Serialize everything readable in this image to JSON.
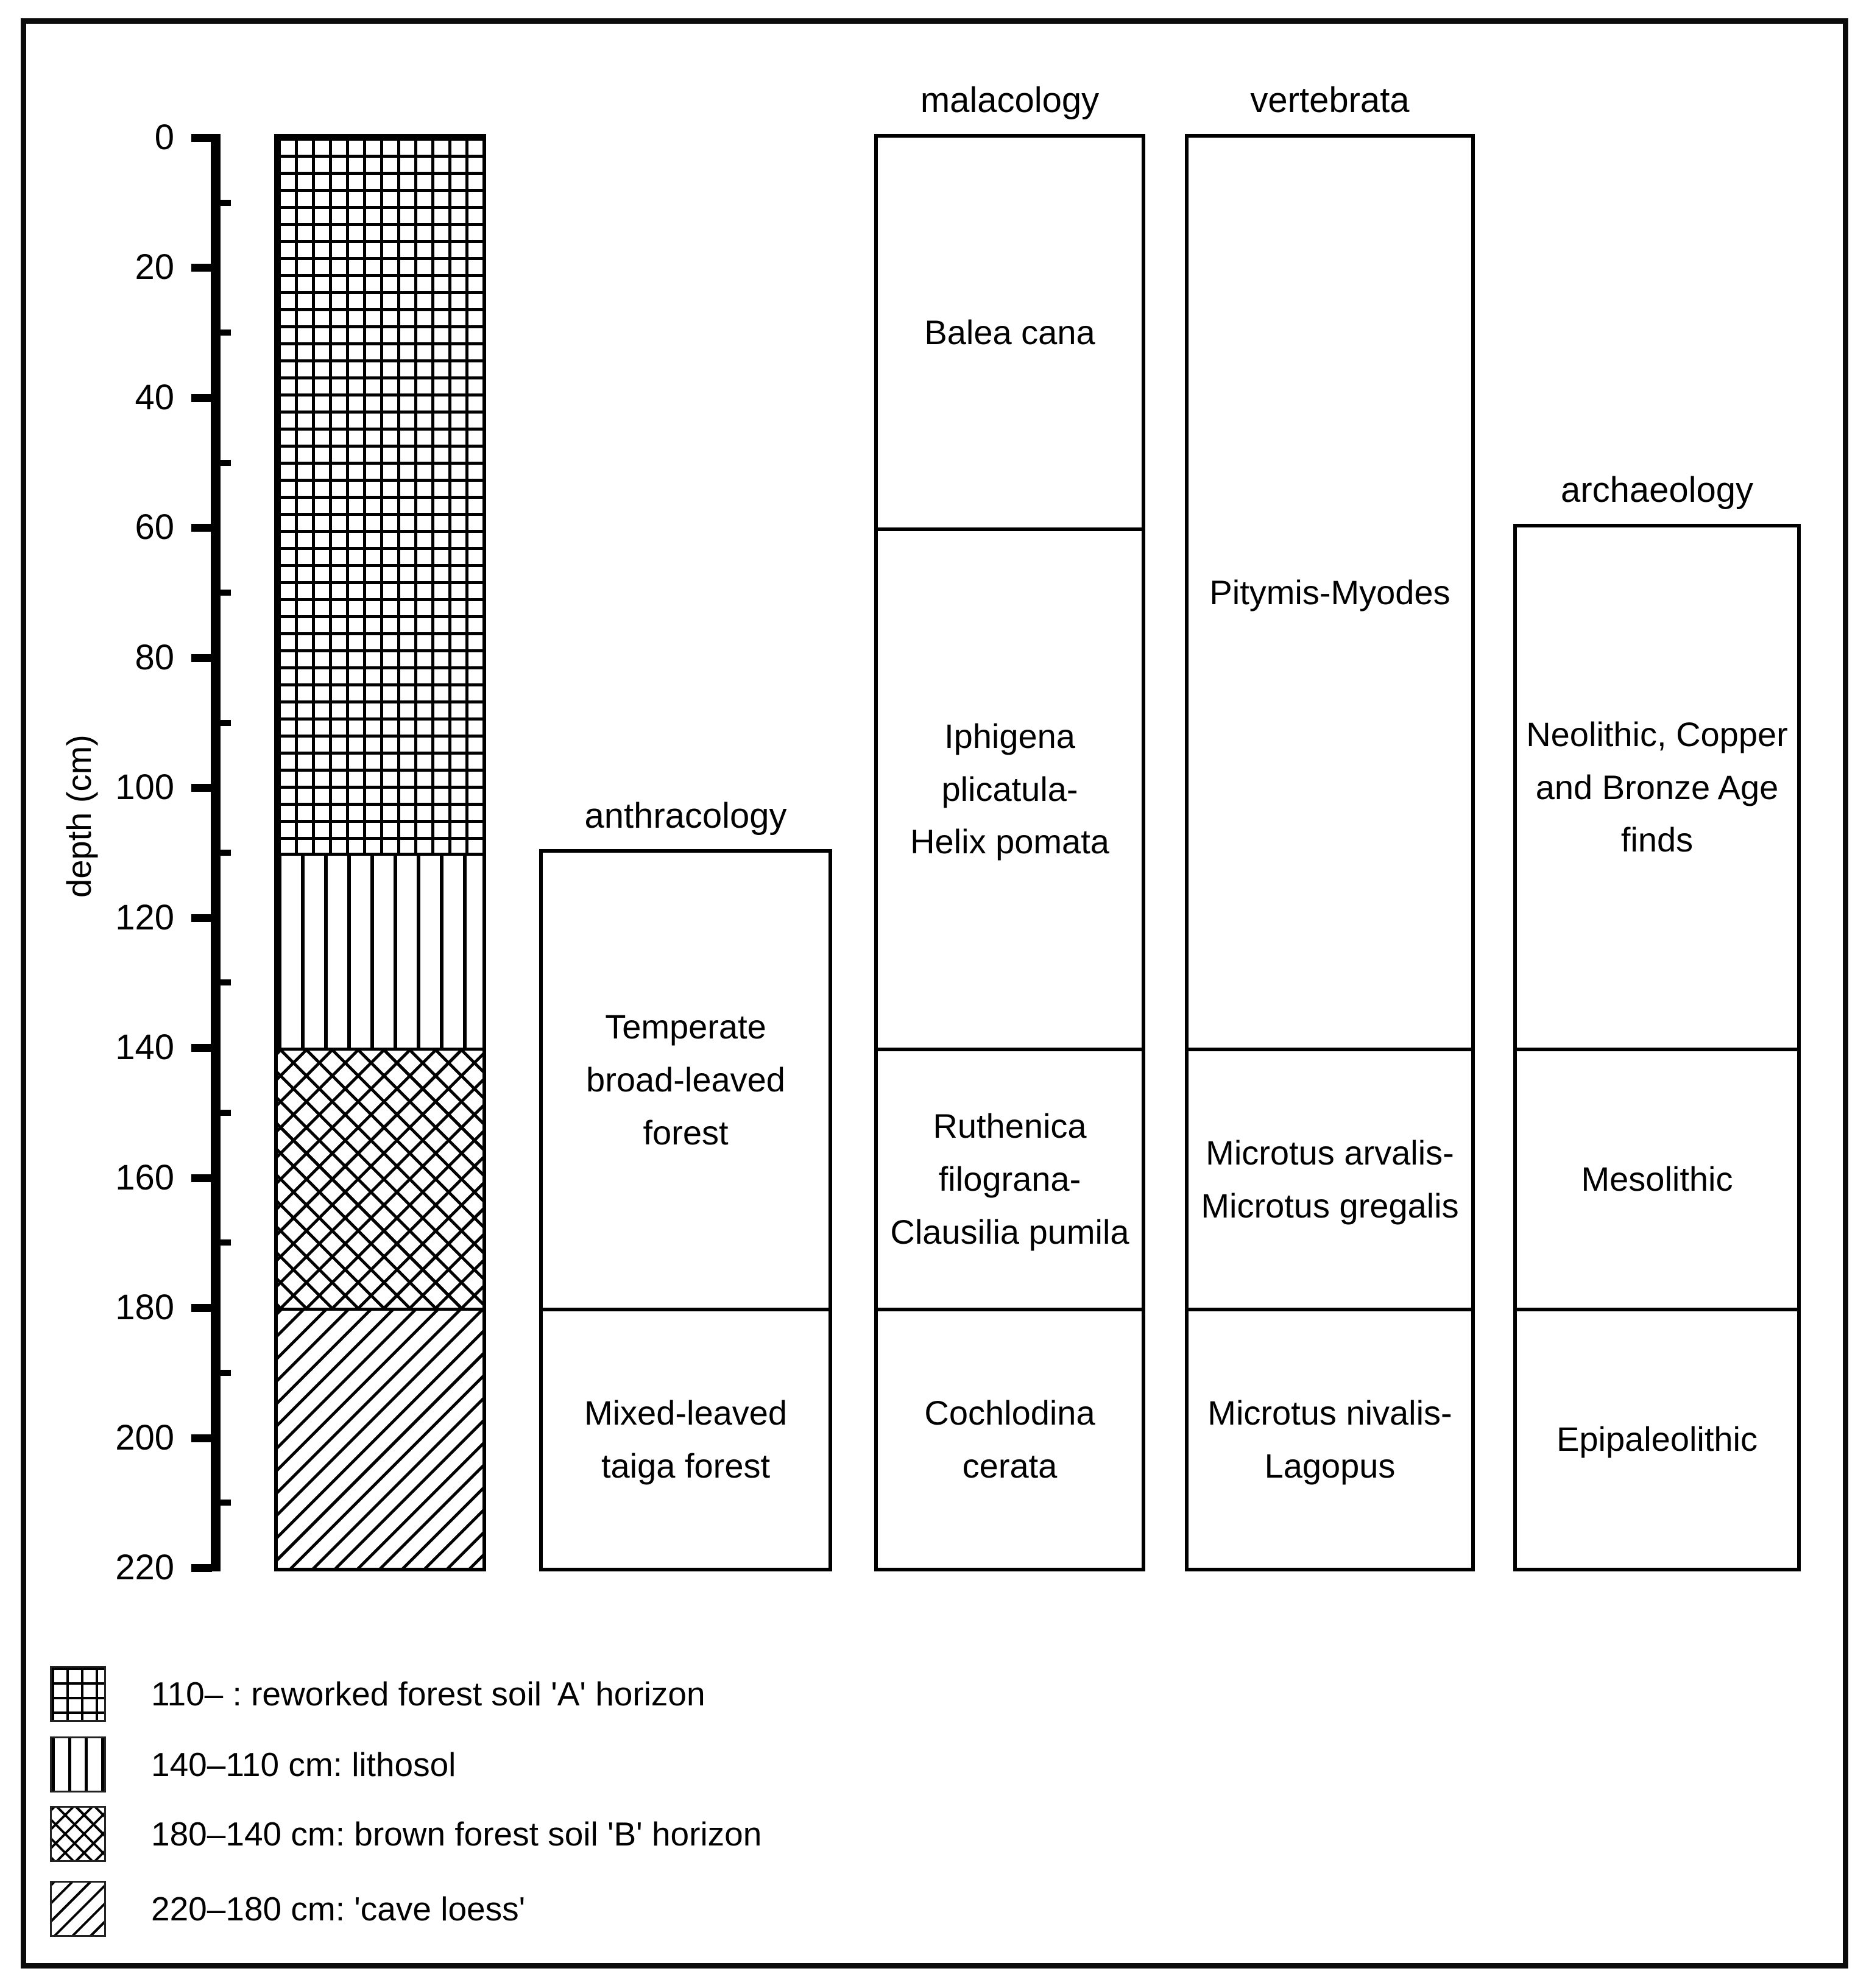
{
  "figure": {
    "axis": {
      "label": "depth (cm)",
      "unit": "cm",
      "min": 0,
      "max": 220,
      "major_ticks": [
        0,
        20,
        40,
        60,
        80,
        100,
        120,
        140,
        160,
        180,
        200,
        220
      ],
      "minor_ticks": [
        10,
        30,
        50,
        70,
        90,
        110,
        130,
        150,
        170,
        190,
        210
      ]
    },
    "lithology_column": {
      "layers": [
        {
          "from": 0,
          "to": 110,
          "pattern": "grid",
          "name": "reworked forest soil 'A' horizon"
        },
        {
          "from": 110,
          "to": 140,
          "pattern": "vlines",
          "name": "lithosol"
        },
        {
          "from": 140,
          "to": 180,
          "pattern": "crosshatch",
          "name": "brown forest soil 'B' horizon"
        },
        {
          "from": 180,
          "to": 220,
          "pattern": "diagonal",
          "name": "'cave loess'"
        }
      ]
    },
    "columns": [
      {
        "id": "anthracology",
        "title": "anthracology",
        "segments": [
          {
            "from": 110,
            "to": 180,
            "label": "Temperate\nbroad-leaved\nforest"
          },
          {
            "from": 180,
            "to": 220,
            "label": "Mixed-leaved\ntaiga forest"
          }
        ]
      },
      {
        "id": "malacology",
        "title": "malacology",
        "segments": [
          {
            "from": 0,
            "to": 60,
            "label": "Balea cana"
          },
          {
            "from": 60,
            "to": 140,
            "label": "Iphigena\nplicatula-\nHelix pomata"
          },
          {
            "from": 140,
            "to": 180,
            "label": "Ruthenica\nfilograna-\nClausilia pumila"
          },
          {
            "from": 180,
            "to": 220,
            "label": "Cochlodina\ncerata"
          }
        ]
      },
      {
        "id": "vertebrata",
        "title": "vertebrata",
        "segments": [
          {
            "from": 0,
            "to": 140,
            "label": "Pitymis-Myodes"
          },
          {
            "from": 140,
            "to": 180,
            "label": "Microtus arvalis-\nMicrotus gregalis"
          },
          {
            "from": 180,
            "to": 220,
            "label": "Microtus nivalis-\nLagopus"
          }
        ]
      },
      {
        "id": "archaeology",
        "title": "archaeology",
        "segments": [
          {
            "from": 60,
            "to": 140,
            "label": "Neolithic, Copper\nand Bronze Age\nfinds"
          },
          {
            "from": 140,
            "to": 180,
            "label": "Mesolithic"
          },
          {
            "from": 180,
            "to": 220,
            "label": "Epipaleolithic"
          }
        ]
      }
    ],
    "legend": [
      {
        "pattern": "grid",
        "label": "110– : reworked forest soil 'A' horizon"
      },
      {
        "pattern": "vlines",
        "label": "140–110 cm: lithosol"
      },
      {
        "pattern": "crosshatch",
        "label": "180–140 cm: brown forest soil 'B' horizon"
      },
      {
        "pattern": "diagonal",
        "label": "220–180 cm: 'cave loess'"
      }
    ],
    "colors": {
      "ink": "#000000",
      "background": "#ffffff"
    }
  },
  "chart_data": {
    "type": "table",
    "title": "",
    "ylabel": "depth (cm)",
    "ylim": [
      0,
      220
    ],
    "depth_intervals_cm": {
      "lithology": [
        {
          "interval": [
            0,
            110
          ],
          "unit": "reworked forest soil 'A' horizon"
        },
        {
          "interval": [
            110,
            140
          ],
          "unit": "lithosol"
        },
        {
          "interval": [
            140,
            180
          ],
          "unit": "brown forest soil 'B' horizon"
        },
        {
          "interval": [
            180,
            220
          ],
          "unit": "'cave loess'"
        }
      ],
      "anthracology": [
        {
          "interval": [
            110,
            180
          ],
          "zone": "Temperate broad-leaved forest"
        },
        {
          "interval": [
            180,
            220
          ],
          "zone": "Mixed-leaved taiga forest"
        }
      ],
      "malacology": [
        {
          "interval": [
            0,
            60
          ],
          "zone": "Balea cana"
        },
        {
          "interval": [
            60,
            140
          ],
          "zone": "Iphigena plicatula-Helix pomata"
        },
        {
          "interval": [
            140,
            180
          ],
          "zone": "Ruthenica filograna-Clausilia pumila"
        },
        {
          "interval": [
            180,
            220
          ],
          "zone": "Cochlodina cerata"
        }
      ],
      "vertebrata": [
        {
          "interval": [
            0,
            140
          ],
          "zone": "Pitymis-Myodes"
        },
        {
          "interval": [
            140,
            180
          ],
          "zone": "Microtus arvalis-Microtus gregalis"
        },
        {
          "interval": [
            180,
            220
          ],
          "zone": "Microtus nivalis-Lagopus"
        }
      ],
      "archaeology": [
        {
          "interval": [
            60,
            140
          ],
          "zone": "Neolithic, Copper and Bronze Age finds"
        },
        {
          "interval": [
            140,
            180
          ],
          "zone": "Mesolithic"
        },
        {
          "interval": [
            180,
            220
          ],
          "zone": "Epipaleolithic"
        }
      ]
    }
  }
}
